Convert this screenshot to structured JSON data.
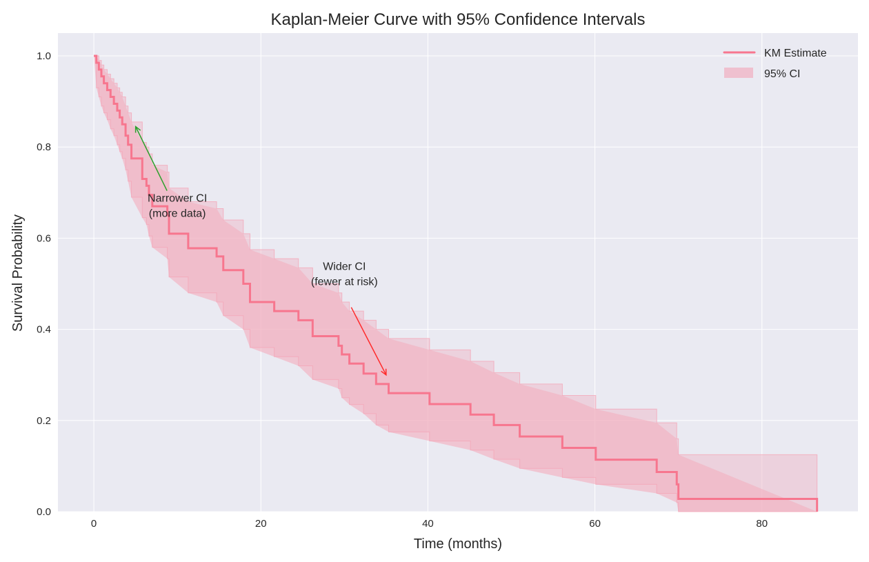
{
  "chart_data": {
    "type": "line",
    "title": "Kaplan-Meier Curve with 95% Confidence Intervals",
    "xlabel": "Time (months)",
    "ylabel": "Survival Probability",
    "xlim": [
      -4.3,
      91.5
    ],
    "ylim": [
      0.0,
      1.05
    ],
    "xticks": [
      0,
      20,
      40,
      60,
      80
    ],
    "xtick_labels": [
      "0",
      "20",
      "40",
      "60",
      "80"
    ],
    "yticks": [
      0.0,
      0.2,
      0.4,
      0.6,
      0.8,
      1.0
    ],
    "ytick_labels": [
      "0.0",
      "0.2",
      "0.4",
      "0.6",
      "0.8",
      "1.0"
    ],
    "grid": true,
    "legend_position": "top-right",
    "series": [
      {
        "name": "KM Estimate",
        "kind": "step-line",
        "color": "#f7768e",
        "t": [
          0,
          0.3,
          0.6,
          0.9,
          1.2,
          1.6,
          2.0,
          2.4,
          2.8,
          3.1,
          3.4,
          3.8,
          4.1,
          4.5,
          5.8,
          6.3,
          6.6,
          7.0,
          8.8,
          9.0,
          11.3,
          14.7,
          15.5,
          17.9,
          18.7,
          21.6,
          24.5,
          26.2,
          29.3,
          29.7,
          30.6,
          32.3,
          33.8,
          35.3,
          40.2,
          45.1,
          47.9,
          51.0,
          56.1,
          60.1,
          67.4,
          69.8,
          70.0
        ],
        "s": [
          1.0,
          0.985,
          0.97,
          0.955,
          0.94,
          0.925,
          0.91,
          0.895,
          0.88,
          0.865,
          0.85,
          0.825,
          0.805,
          0.775,
          0.73,
          0.715,
          0.695,
          0.67,
          0.65,
          0.61,
          0.578,
          0.56,
          0.53,
          0.5,
          0.46,
          0.44,
          0.42,
          0.385,
          0.364,
          0.345,
          0.325,
          0.303,
          0.28,
          0.26,
          0.236,
          0.213,
          0.19,
          0.165,
          0.14,
          0.114,
          0.087,
          0.06,
          0.028
        ],
        "t_end": 86.6
      },
      {
        "name": "95% CI",
        "kind": "band",
        "color": "#f4a6b8",
        "upper": [
          1.0,
          1.0,
          0.99,
          0.98,
          0.97,
          0.96,
          0.95,
          0.94,
          0.93,
          0.92,
          0.91,
          0.89,
          0.875,
          0.855,
          0.81,
          0.8,
          0.785,
          0.76,
          0.745,
          0.71,
          0.68,
          0.665,
          0.64,
          0.61,
          0.575,
          0.555,
          0.535,
          0.5,
          0.48,
          0.46,
          0.44,
          0.42,
          0.4,
          0.38,
          0.355,
          0.33,
          0.305,
          0.28,
          0.255,
          0.225,
          0.195,
          0.16,
          0.125
        ],
        "lower": [
          1.0,
          0.93,
          0.91,
          0.89,
          0.875,
          0.86,
          0.84,
          0.825,
          0.805,
          0.79,
          0.775,
          0.75,
          0.725,
          0.69,
          0.645,
          0.63,
          0.605,
          0.58,
          0.555,
          0.515,
          0.48,
          0.46,
          0.43,
          0.4,
          0.36,
          0.34,
          0.32,
          0.29,
          0.27,
          0.25,
          0.235,
          0.215,
          0.19,
          0.175,
          0.155,
          0.135,
          0.115,
          0.095,
          0.075,
          0.06,
          0.04,
          0.02,
          0.0
        ]
      }
    ],
    "annotations": [
      {
        "text_lines": [
          "Narrower CI",
          "(more data)"
        ],
        "text_at": [
          10,
          0.68
        ],
        "arrow_to": [
          5,
          0.845
        ],
        "color": "#2ca02c"
      },
      {
        "text_lines": [
          "Wider CI",
          "(fewer at risk)"
        ],
        "text_at": [
          30,
          0.53
        ],
        "arrow_to": [
          35,
          0.3
        ],
        "color": "#ff2a2a"
      }
    ]
  },
  "legend": {
    "items": [
      {
        "label": "KM Estimate",
        "type": "line",
        "color": "#f7768e"
      },
      {
        "label": "95% CI",
        "type": "patch",
        "color": "#efc0cf"
      }
    ]
  },
  "colors": {
    "axes_bg": "#eaeaf2",
    "grid": "#ffffff",
    "km_line": "#f7768e",
    "ci_fill": "#f4a6b8",
    "ci_step_fill": "#efc6d2",
    "text": "#262626"
  }
}
